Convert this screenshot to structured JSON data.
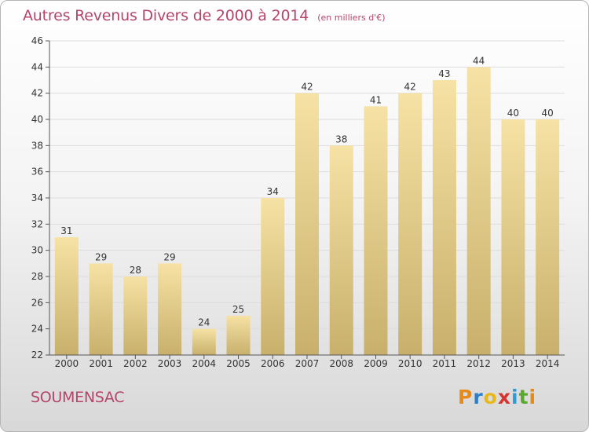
{
  "title": "Autres Revenus Divers de 2000 à 2014",
  "subtitle": "(en milliers d'€)",
  "place": "SOUMENSAC",
  "logo": {
    "letters": [
      "P",
      "r",
      "o",
      "x",
      "i",
      "t",
      "i"
    ],
    "colors": [
      "#e88a1a",
      "#2e7fc8",
      "#e8b81a",
      "#d6342e",
      "#2e9bd8",
      "#5aa82e",
      "#e88a1a"
    ]
  },
  "colors": {
    "bar_light": "#f6e2a4",
    "bar_dark": "#c8b06c",
    "text": "#b5456b",
    "grid": "#dddddd"
  },
  "chart_data": {
    "type": "bar",
    "title": "Autres Revenus Divers de 2000 à 2014",
    "subtitle": "(en milliers d'€)",
    "categories": [
      "2000",
      "2001",
      "2002",
      "2003",
      "2004",
      "2005",
      "2006",
      "2007",
      "2008",
      "2009",
      "2010",
      "2011",
      "2012",
      "2013",
      "2014"
    ],
    "values": [
      31,
      29,
      28,
      29,
      24,
      25,
      34,
      42,
      38,
      41,
      42,
      43,
      44,
      40,
      40
    ],
    "ylim": [
      22,
      46
    ],
    "yticks": [
      22,
      24,
      26,
      28,
      30,
      32,
      34,
      36,
      38,
      40,
      42,
      44,
      46
    ],
    "grid": true,
    "xlabel": "",
    "ylabel": ""
  }
}
